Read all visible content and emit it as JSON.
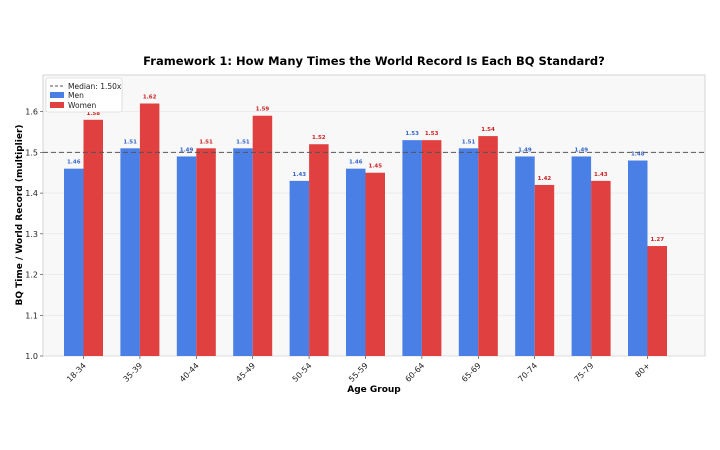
{
  "chart_data": {
    "type": "bar",
    "title": "Framework 1: How Many Times the World Record Is Each BQ Standard?",
    "xlabel": "Age Group",
    "ylabel": "BQ Time / World Record (multiplier)",
    "categories": [
      "18-34",
      "35-39",
      "40-44",
      "45-49",
      "50-54",
      "55-59",
      "60-64",
      "65-69",
      "70-74",
      "75-79",
      "80+"
    ],
    "series": [
      {
        "name": "Men",
        "color": "#4a7fe6",
        "label_color": "#3366cc",
        "values": [
          1.46,
          1.51,
          1.49,
          1.51,
          1.43,
          1.46,
          1.53,
          1.51,
          1.49,
          1.49,
          1.48
        ]
      },
      {
        "name": "Women",
        "color": "#e0403f",
        "label_color": "#cc2222",
        "values": [
          1.58,
          1.62,
          1.51,
          1.59,
          1.52,
          1.45,
          1.53,
          1.54,
          1.42,
          1.43,
          1.27
        ]
      }
    ],
    "median": {
      "value": 1.5,
      "label": "Median: 1.50x",
      "color": "#555555"
    },
    "ylim": [
      1.0,
      1.69
    ],
    "yticks": [
      "1.0",
      "1.1",
      "1.2",
      "1.3",
      "1.4",
      "1.5",
      "1.6"
    ],
    "grid": true,
    "legend_position": "top-left"
  }
}
